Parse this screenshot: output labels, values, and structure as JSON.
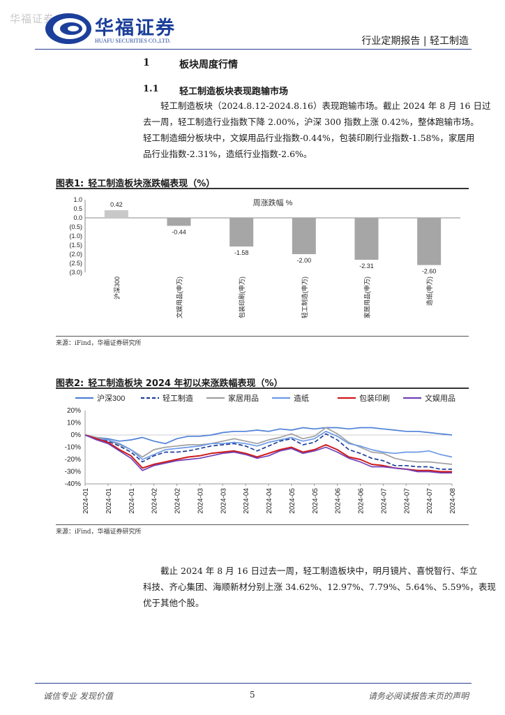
{
  "header": {
    "watermark": "华福证券",
    "company_cn": "华福证券",
    "company_en": "HUAFU SECURITIES CO.,LTD.",
    "report_type": "行业定期报告 | 轻工制造",
    "brand_color": "#1b3f9a"
  },
  "section1": {
    "num": "1",
    "title": "板块周度行情"
  },
  "section11": {
    "num": "1.1",
    "title": "轻工制造板块表现跑输市场"
  },
  "paragraph1": {
    "lines": [
      "轻工制造板块（2024.8.12-2024.8.16）表现跑输市场。截止 2024 年 8 月 16 日过",
      "去一周，轻工制造行业指数下降 2.00%，沪深 300 指数上涨 0.42%，整体跑输市场。",
      "轻工制造细分板块中，文娱用品行业指数-0.44%，包装印刷行业指数-1.58%，家居用",
      "品行业指数-2.31%，造纸行业指数-2.6%。"
    ]
  },
  "figure1": {
    "label": "图表1:",
    "title": "轻工制造板块涨跌幅表现（%）",
    "source": "来源：iFind，华福证券研究所"
  },
  "figure2": {
    "label": "图表2:",
    "title": "轻工制造板块 2024 年初以来涨跌幅表现（%）",
    "source": "来源：iFind，华福证券研究所"
  },
  "paragraph2": {
    "lines": [
      "截止 2024 年 8 月 16 日过去一周，轻工制造板块中，明月镜片、喜悦智行、华立",
      "科技、齐心集团、海顺新材分别上涨 34.62%、12.97%、7.79%、5.64%、5.59%，表现",
      "优于其他个股。"
    ]
  },
  "footer": {
    "left": "诚信专业  发现价值",
    "page": "5",
    "right": "请务必阅读报告末页的声明"
  },
  "chart_data": [
    {
      "type": "bar",
      "title": "周涨跌幅 %",
      "categories": [
        "沪深300",
        "文娱用品(申万)",
        "包装印刷(申万)",
        "轻工制造(申万)",
        "家居用品(申万)",
        "造纸(申万)"
      ],
      "values": [
        0.42,
        -0.44,
        -1.58,
        -2.0,
        -2.31,
        -2.6
      ],
      "data_labels": [
        "0.42",
        "-0.44",
        "-1.58",
        "-2.00",
        "-2.31",
        "-2.60"
      ],
      "y_ticks": [
        1.0,
        0.5,
        0.0,
        -0.5,
        -1.0,
        -1.5,
        -2.0,
        -2.5,
        -3.0
      ],
      "y_tick_labels": [
        "1.0",
        "0.5",
        "0.0",
        "(0.5)",
        "(1.0)",
        "(1.5)",
        "(2.0)",
        "(2.5)",
        "(3.0)"
      ],
      "ylim": [
        -3.0,
        1.0
      ],
      "grid": false,
      "colors": {
        "positive": "#c8c8c8",
        "negative": "#a6a6a6"
      }
    },
    {
      "type": "line",
      "legend_position": "top",
      "grid": false,
      "x_tick_labels": [
        "2024-01",
        "2024-01",
        "2024-01",
        "2024-02",
        "2024-02",
        "2024-03",
        "2024-03",
        "2024-04",
        "2024-04",
        "2024-05",
        "2024-05",
        "2024-06",
        "2024-06",
        "2024-07",
        "2024-07",
        "2024-07",
        "2024-08"
      ],
      "y_ticks": [
        20,
        10,
        0,
        -10,
        -20,
        -30,
        -40
      ],
      "y_tick_labels": [
        "20%",
        "10%",
        "0%",
        "-10%",
        "-20%",
        "-30%",
        "-40%"
      ],
      "ylim": [
        -40,
        20
      ],
      "x_points": 33,
      "series": [
        {
          "name": "沪深300",
          "color": "#4f81d8",
          "dash": false,
          "values": [
            0,
            -2,
            -3,
            -5,
            -4,
            -2,
            -5,
            -7,
            -3,
            -1,
            -1,
            0,
            2,
            3,
            3,
            4,
            3,
            5,
            4,
            6,
            5,
            6,
            6,
            5,
            6,
            6,
            5,
            4,
            3,
            3,
            2,
            1,
            0
          ]
        },
        {
          "name": "轻工制造",
          "color": "#1f3f9a",
          "dash": true,
          "values": [
            0,
            -3,
            -5,
            -9,
            -14,
            -22,
            -17,
            -14,
            -14,
            -13,
            -11,
            -9,
            -8,
            -7,
            -9,
            -13,
            -9,
            -5,
            -3,
            -8,
            -6,
            1,
            -4,
            -12,
            -15,
            -19,
            -21,
            -25,
            -25,
            -26,
            -26,
            -28,
            -28
          ]
        },
        {
          "name": "家居用品",
          "color": "#a0a0a0",
          "dash": false,
          "values": [
            0,
            -2,
            -4,
            -8,
            -12,
            -18,
            -12,
            -10,
            -9,
            -8,
            -8,
            -7,
            -5,
            -3,
            -5,
            -7,
            -4,
            -2,
            1,
            -3,
            -1,
            6,
            1,
            -6,
            -10,
            -14,
            -15,
            -19,
            -21,
            -22,
            -22,
            -23,
            -24
          ]
        },
        {
          "name": "造纸",
          "color": "#6b9ae8",
          "dash": false,
          "values": [
            0,
            -3,
            -4,
            -7,
            -12,
            -20,
            -16,
            -12,
            -11,
            -10,
            -9,
            -7,
            -7,
            -6,
            -7,
            -9,
            -6,
            -4,
            -2,
            -5,
            -3,
            3,
            -1,
            -7,
            -9,
            -12,
            -14,
            -15,
            -14,
            -14,
            -13,
            -16,
            -18
          ]
        },
        {
          "name": "包装印刷",
          "color": "#d01818",
          "dash": false,
          "values": [
            0,
            -3,
            -6,
            -12,
            -17,
            -27,
            -24,
            -22,
            -20,
            -18,
            -17,
            -15,
            -14,
            -13,
            -15,
            -18,
            -15,
            -12,
            -10,
            -14,
            -12,
            -8,
            -12,
            -18,
            -20,
            -24,
            -25,
            -27,
            -28,
            -29,
            -29,
            -30,
            -30
          ]
        },
        {
          "name": "文娱用品",
          "color": "#7040b8",
          "dash": false,
          "values": [
            0,
            -4,
            -7,
            -13,
            -19,
            -29,
            -25,
            -23,
            -21,
            -20,
            -19,
            -17,
            -15,
            -14,
            -16,
            -19,
            -17,
            -13,
            -11,
            -15,
            -13,
            -10,
            -14,
            -19,
            -22,
            -26,
            -26,
            -27,
            -28,
            -30,
            -30,
            -31,
            -31
          ]
        }
      ]
    }
  ]
}
